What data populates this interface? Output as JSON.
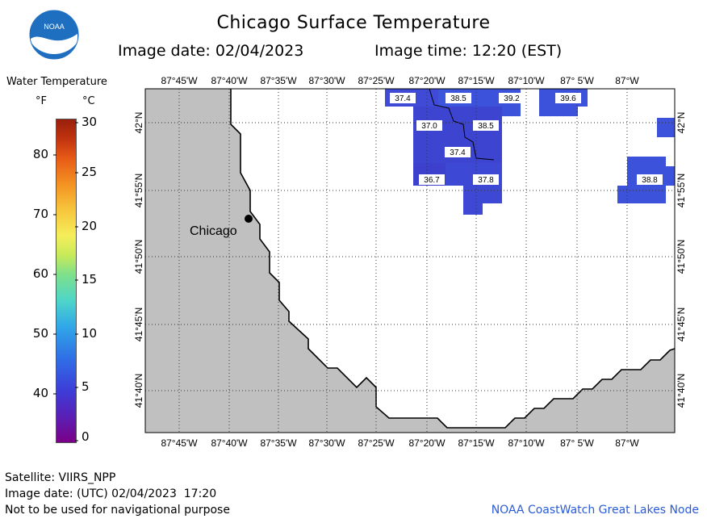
{
  "header": {
    "title": "Chicago Surface Temperature",
    "image_date": "Image date: 02/04/2023",
    "image_time": "Image time: 12:20 (EST)",
    "logo_text": "NOAA"
  },
  "legend": {
    "title": "Water Temperature",
    "unit_f": "°F",
    "unit_c": "°C",
    "f_ticks": [
      "80",
      "70",
      "60",
      "50",
      "40"
    ],
    "c_ticks": [
      "30",
      "25",
      "20",
      "15",
      "10",
      "5",
      "0"
    ]
  },
  "axes": {
    "lon_labels": [
      "87°45'W",
      "87°40'W",
      "87°35'W",
      "87°30'W",
      "87°25'W",
      "87°20'W",
      "87°15'W",
      "87°10'W",
      "87° 5'W",
      "87°W"
    ],
    "lat_labels": [
      "42°N",
      "41°55'N",
      "41°50'N",
      "41°45'N",
      "41°40'N"
    ]
  },
  "city": {
    "label": "Chicago"
  },
  "temperatures": [
    "37.4",
    "38.5",
    "39.2",
    "39.6",
    "37.0",
    "38.5",
    "37.4",
    "36.7",
    "37.8",
    "38.8"
  ],
  "footer": {
    "satellite": "Satellite: VIIRS_NPP",
    "utc_date": "Image date: (UTC) 02/04/2023  17:20",
    "disclaimer": "Not to be used for navigational purpose",
    "credit": "NOAA CoastWatch Great Lakes Node"
  },
  "colors": {
    "land": "#c0c0c0",
    "water_cold": "#3f4bd6",
    "water_warm": "#3b55dc",
    "credit": "#2a5bd7"
  }
}
